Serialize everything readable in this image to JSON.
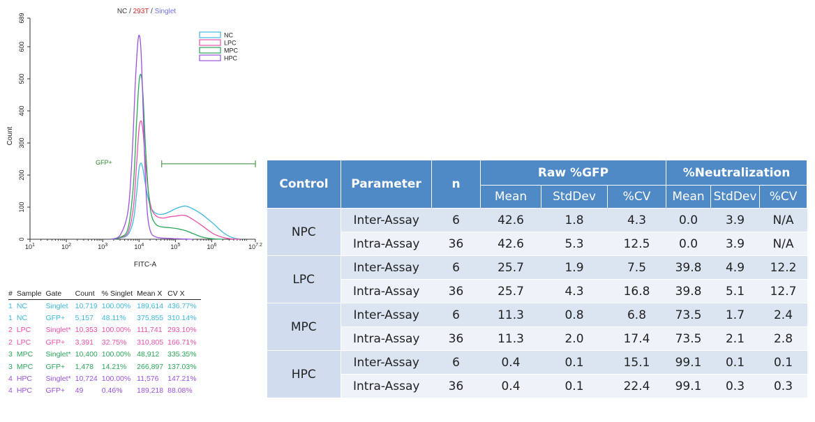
{
  "colors": {
    "NC": "#3cb8de",
    "LPC": "#ea4fa8",
    "MPC": "#2aa65a",
    "HPC": "#9b52dd",
    "gate": "#2a8a2a",
    "title_slash": "#333333",
    "title_293T": "#d22a2a",
    "title_singlet": "#6f6fe0",
    "table_header": "#4f89c6",
    "table_control": "#d1dcef",
    "table_row_dark": "#dbe4f1",
    "table_row_light": "#eef2f9"
  },
  "chart_data": [
    {
      "type": "line",
      "title_parts": [
        "NC",
        "293T",
        "Singlet"
      ],
      "title_separator": " / ",
      "xlabel": "FITC-A",
      "ylabel": "Count",
      "x_scale": "log",
      "xlim": [
        10,
        15849000
      ],
      "ylim": [
        0,
        689
      ],
      "x_ticks": [
        {
          "base": "10",
          "exp": "1",
          "value": 10
        },
        {
          "base": "10",
          "exp": "2",
          "value": 100
        },
        {
          "base": "10",
          "exp": "3",
          "value": 1000
        },
        {
          "base": "10",
          "exp": "4",
          "value": 10000
        },
        {
          "base": "10",
          "exp": "5",
          "value": 100000
        },
        {
          "base": "10",
          "exp": "6",
          "value": 1000000
        },
        {
          "base": "10",
          "exp": "7.2",
          "value": 15849000
        }
      ],
      "y_ticks": [
        "0",
        "100",
        "200",
        "300",
        "400",
        "500",
        "600",
        "689"
      ],
      "legend_position": "top-right",
      "legend": [
        "NC",
        "LPC",
        "MPC",
        "HPC"
      ],
      "gate": {
        "label": "GFP+",
        "x_start": 42000,
        "x_end": 15849000,
        "y": 235
      },
      "series": [
        {
          "name": "NC",
          "x": [
            1700,
            3000,
            5000,
            7000,
            8500,
            10000,
            11500,
            13000,
            15000,
            18000,
            22000,
            30000,
            45000,
            70000,
            100000,
            150000,
            200000,
            300000,
            500000,
            800000,
            1200000,
            2000000,
            3500000,
            6000000
          ],
          "y": [
            0,
            4,
            15,
            60,
            140,
            220,
            237,
            215,
            170,
            125,
            95,
            80,
            78,
            86,
            95,
            102,
            103,
            95,
            80,
            62,
            45,
            22,
            6,
            0
          ]
        },
        {
          "name": "LPC",
          "x": [
            1700,
            3000,
            5000,
            7000,
            8500,
            10000,
            11500,
            13000,
            15000,
            18000,
            22000,
            30000,
            45000,
            70000,
            100000,
            150000,
            200000,
            300000,
            500000,
            800000,
            1200000,
            2000000,
            3500000,
            6000000
          ],
          "y": [
            0,
            5,
            22,
            100,
            230,
            345,
            368,
            330,
            240,
            150,
            95,
            72,
            66,
            70,
            72,
            75,
            73,
            62,
            45,
            28,
            15,
            6,
            1,
            0
          ]
        },
        {
          "name": "MPC",
          "x": [
            1700,
            3000,
            5000,
            7000,
            8500,
            10000,
            11500,
            13000,
            15000,
            18000,
            22000,
            30000,
            45000,
            70000,
            100000,
            150000,
            200000,
            300000,
            500000,
            800000,
            1200000,
            2000000
          ],
          "y": [
            0,
            6,
            35,
            170,
            360,
            490,
            510,
            440,
            290,
            150,
            75,
            45,
            38,
            36,
            34,
            30,
            26,
            18,
            8,
            3,
            1,
            0
          ]
        },
        {
          "name": "HPC",
          "x": [
            1700,
            3000,
            5000,
            6500,
            8000,
            9500,
            11000,
            12500,
            14500,
            17000,
            21000,
            28000,
            40000,
            60000,
            90000,
            150000,
            300000
          ],
          "y": [
            0,
            12,
            90,
            270,
            500,
            625,
            610,
            460,
            230,
            80,
            22,
            8,
            4,
            3,
            2,
            1,
            0
          ]
        }
      ]
    },
    {
      "type": "table",
      "name": "population-statistics",
      "columns": [
        "#",
        "Sample",
        "Gate",
        "Count",
        "% Singlet",
        "Mean X",
        "CV X"
      ],
      "rows": [
        {
          "series": "NC",
          "cells": [
            "1",
            "NC",
            "Singlet",
            "10,719",
            "100.00%",
            "189,614",
            "436.77%"
          ]
        },
        {
          "series": "NC",
          "cells": [
            "1",
            "NC",
            "GFP+",
            "5,157",
            "48.11%",
            "375,855",
            "310.14%"
          ]
        },
        {
          "series": "LPC",
          "cells": [
            "2",
            "LPC",
            "Singlet*",
            "10,353",
            "100.00%",
            "111,741",
            "293.10%"
          ]
        },
        {
          "series": "LPC",
          "cells": [
            "2",
            "LPC",
            "GFP+",
            "3,391",
            "32.75%",
            "310,805",
            "166.71%"
          ]
        },
        {
          "series": "MPC",
          "cells": [
            "3",
            "MPC",
            "Singlet*",
            "10,400",
            "100.00%",
            "48,912",
            "335.35%"
          ]
        },
        {
          "series": "MPC",
          "cells": [
            "3",
            "MPC",
            "GFP+",
            "1,478",
            "14.21%",
            "266,897",
            "137.03%"
          ]
        },
        {
          "series": "HPC",
          "cells": [
            "4",
            "HPC",
            "Singlet*",
            "10,724",
            "100.00%",
            "11,576",
            "147.21%"
          ]
        },
        {
          "series": "HPC",
          "cells": [
            "4",
            "HPC",
            "GFP+",
            "49",
            "0.46%",
            "189,218",
            "88.08%"
          ]
        }
      ]
    },
    {
      "type": "table",
      "name": "assay-summary",
      "header_top": [
        "Control",
        "Parameter",
        "n",
        "Raw %GFP",
        "%Neutralization"
      ],
      "header_sub": [
        "Mean",
        "StdDev",
        "%CV",
        "Mean",
        "StdDev",
        "%CV"
      ],
      "groups": [
        {
          "control": "NPC",
          "rows": [
            {
              "parameter": "Inter-Assay",
              "n": "6",
              "raw_mean": "42.6",
              "raw_sd": "1.8",
              "raw_cv": "4.3",
              "neu_mean": "0.0",
              "neu_sd": "3.9",
              "neu_cv": "N/A"
            },
            {
              "parameter": "Intra-Assay",
              "n": "36",
              "raw_mean": "42.6",
              "raw_sd": "5.3",
              "raw_cv": "12.5",
              "neu_mean": "0.0",
              "neu_sd": "3.9",
              "neu_cv": "N/A"
            }
          ]
        },
        {
          "control": "LPC",
          "rows": [
            {
              "parameter": "Inter-Assay",
              "n": "6",
              "raw_mean": "25.7",
              "raw_sd": "1.9",
              "raw_cv": "7.5",
              "neu_mean": "39.8",
              "neu_sd": "4.9",
              "neu_cv": "12.2"
            },
            {
              "parameter": "Intra-Assay",
              "n": "36",
              "raw_mean": "25.7",
              "raw_sd": "4.3",
              "raw_cv": "16.8",
              "neu_mean": "39.8",
              "neu_sd": "5.1",
              "neu_cv": "12.7"
            }
          ]
        },
        {
          "control": "MPC",
          "rows": [
            {
              "parameter": "Inter-Assay",
              "n": "6",
              "raw_mean": "11.3",
              "raw_sd": "0.8",
              "raw_cv": "6.8",
              "neu_mean": "73.5",
              "neu_sd": "1.7",
              "neu_cv": "2.4"
            },
            {
              "parameter": "Intra-Assay",
              "n": "36",
              "raw_mean": "11.3",
              "raw_sd": "2.0",
              "raw_cv": "17.4",
              "neu_mean": "73.5",
              "neu_sd": "2.1",
              "neu_cv": "2.8"
            }
          ]
        },
        {
          "control": "HPC",
          "rows": [
            {
              "parameter": "Inter-Assay",
              "n": "6",
              "raw_mean": "0.4",
              "raw_sd": "0.1",
              "raw_cv": "15.1",
              "neu_mean": "99.1",
              "neu_sd": "0.1",
              "neu_cv": "0.1"
            },
            {
              "parameter": "Intra-Assay",
              "n": "36",
              "raw_mean": "0.4",
              "raw_sd": "0.1",
              "raw_cv": "22.4",
              "neu_mean": "99.1",
              "neu_sd": "0.3",
              "neu_cv": "0.3"
            }
          ]
        }
      ]
    }
  ]
}
